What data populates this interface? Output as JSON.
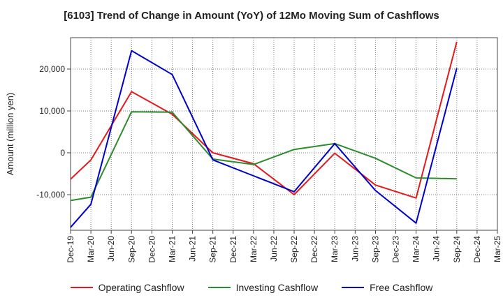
{
  "chart_data": {
    "type": "line",
    "title": "[6103]  Trend of Change in Amount (YoY) of 12Mo Moving Sum of Cashflows",
    "xlabel": "",
    "ylabel": "Amount (million yen)",
    "categories": [
      "Dec-19",
      "Mar-20",
      "Jun-20",
      "Sep-20",
      "Dec-20",
      "Mar-21",
      "Jun-21",
      "Sep-21",
      "Dec-21",
      "Mar-22",
      "Jun-22",
      "Sep-22",
      "Dec-22",
      "Mar-23",
      "Jun-23",
      "Sep-23",
      "Dec-23",
      "Mar-24",
      "Jun-24",
      "Sep-24",
      "Dec-24",
      "Mar-25"
    ],
    "ylim": [
      -18500,
      27500
    ],
    "yticks": [
      -10000,
      0,
      10000,
      20000
    ],
    "ytick_labels": [
      "-10,000",
      "0",
      "10,000",
      "20,000"
    ],
    "grid": true,
    "legend_position": "bottom",
    "series": [
      {
        "name": "Operating Cashflow",
        "color": "#e31a1c",
        "points": [
          [
            0,
            -6300
          ],
          [
            1,
            -1700
          ],
          [
            3,
            14600
          ],
          [
            5,
            9200
          ],
          [
            7,
            0
          ],
          [
            9,
            -2600
          ],
          [
            11,
            -10000
          ],
          [
            13,
            -100
          ],
          [
            15,
            -7700
          ],
          [
            17,
            -10800
          ],
          [
            19,
            26500
          ]
        ]
      },
      {
        "name": "Investing Cashflow",
        "color": "#2e8b2e",
        "points": [
          [
            0,
            -11400
          ],
          [
            1,
            -10600
          ],
          [
            3,
            9800
          ],
          [
            5,
            9700
          ],
          [
            7,
            -1500
          ],
          [
            9,
            -2800
          ],
          [
            11,
            800
          ],
          [
            13,
            2200
          ],
          [
            15,
            -1300
          ],
          [
            17,
            -6000
          ],
          [
            19,
            -6200
          ]
        ]
      },
      {
        "name": "Free Cashflow",
        "color": "#0000cc",
        "points": [
          [
            0,
            -17800
          ],
          [
            1,
            -12300
          ],
          [
            3,
            24400
          ],
          [
            5,
            18700
          ],
          [
            7,
            -1700
          ],
          [
            9,
            -5500
          ],
          [
            11,
            -9300
          ],
          [
            13,
            2200
          ],
          [
            15,
            -9000
          ],
          [
            17,
            -16800
          ],
          [
            19,
            20200
          ]
        ]
      }
    ]
  }
}
